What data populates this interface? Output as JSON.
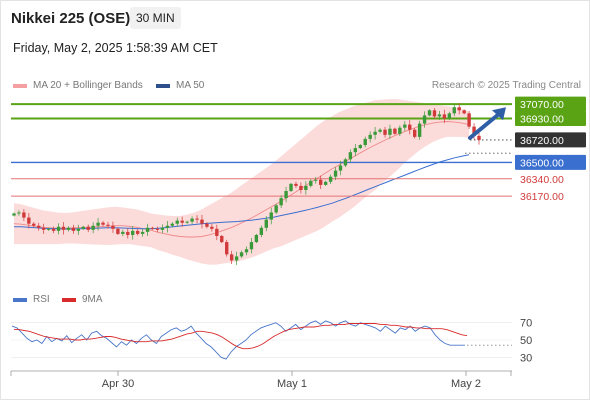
{
  "header": {
    "title": "Nikkei 225 (OSE)",
    "timeframe": "30 MIN",
    "datetime": "Friday, May 2, 2025 1:58:39 AM CET"
  },
  "legend": {
    "bollinger": {
      "label": "MA 20 + Bollinger Bands",
      "color": "#f4a0a0"
    },
    "ma50": {
      "label": "MA 50",
      "color": "#2d4f8c"
    }
  },
  "credit": "Research © 2025 Trading Central",
  "rsi_legend": {
    "rsi": {
      "label": "RSI",
      "color": "#4a76c9"
    },
    "ma9": {
      "label": "9MA",
      "color": "#d92b2b"
    }
  },
  "colors": {
    "resistance": "#5aa314",
    "pivot": "#3b6fcf",
    "support": "#e57373",
    "current": "#333333",
    "bull_candle": "#3a9a3a",
    "bear_candle": "#d13a3a",
    "arrow": "#2e5fa6"
  },
  "chart_data": [
    {
      "type": "candlestick",
      "timeframe": "30 MIN",
      "x_ticks": [
        "Apr 30",
        "May 1",
        "May 2"
      ],
      "ylim": [
        35300,
        37150
      ],
      "levels": [
        {
          "value": 37070,
          "label": "37070.00",
          "kind": "resistance"
        },
        {
          "value": 36930,
          "label": "36930.00",
          "kind": "resistance"
        },
        {
          "value": 36720,
          "label": "36720.00",
          "kind": "current"
        },
        {
          "value": 36500,
          "label": "36500.00",
          "kind": "pivot"
        },
        {
          "value": 36340,
          "label": "36340.00",
          "kind": "support"
        },
        {
          "value": 36170,
          "label": "36170.00",
          "kind": "support"
        }
      ],
      "closes": [
        36000,
        36010,
        35960,
        35900,
        35880,
        35860,
        35840,
        35850,
        35830,
        35870,
        35840,
        35860,
        35830,
        35850,
        35870,
        35840,
        35880,
        35910,
        35890,
        35880,
        35850,
        35800,
        35820,
        35790,
        35830,
        35800,
        35820,
        35860,
        35850,
        35840,
        35860,
        35880,
        35900,
        35930,
        35910,
        35920,
        35950,
        35940,
        35900,
        35870,
        35850,
        35780,
        35720,
        35600,
        35540,
        35580,
        35620,
        35650,
        35720,
        35790,
        35860,
        35940,
        36010,
        36080,
        36150,
        36220,
        36290,
        36270,
        36230,
        36270,
        36320,
        36330,
        36280,
        36310,
        36360,
        36420,
        36470,
        36530,
        36600,
        36640,
        36670,
        36730,
        36770,
        36800,
        36820,
        36770,
        36830,
        36780,
        36840,
        36870,
        36820,
        36750,
        36880,
        36960,
        37010,
        36950,
        36970,
        36930,
        36980,
        37040,
        37010,
        36980,
        36850,
        36760,
        36720
      ],
      "ma50": [
        35870,
        35870,
        35865,
        35860,
        35855,
        35852,
        35850,
        35848,
        35848,
        35850,
        35852,
        35855,
        35858,
        35860,
        35860,
        35858,
        35855,
        35852,
        35850,
        35850,
        35855,
        35862,
        35870,
        35878,
        35885,
        35892,
        35900,
        35905,
        35910,
        35915,
        35918,
        35922,
        35928,
        35935,
        35945,
        35955,
        35965,
        35980,
        35995,
        36010,
        36025,
        36042,
        36060,
        36080,
        36100,
        36125,
        36150,
        36178,
        36205,
        36235,
        36262,
        36290,
        36318,
        36345,
        36372,
        36400,
        36428,
        36455,
        36480,
        36505,
        36525,
        36545,
        36560,
        36575
      ],
      "bollinger_mid": [
        35900,
        35895,
        35885,
        35875,
        35865,
        35860,
        35855,
        35855,
        35858,
        35862,
        35865,
        35868,
        35872,
        35876,
        35880,
        35880,
        35875,
        35865,
        35850,
        35835,
        35815,
        35800,
        35785,
        35775,
        35770,
        35770,
        35775,
        35790,
        35810,
        35835,
        35860,
        35890,
        35925,
        35960,
        36000,
        36040,
        36080,
        36120,
        36165,
        36210,
        36255,
        36300,
        36345,
        36390,
        36435,
        36475,
        36515,
        36555,
        36595,
        36635,
        36670,
        36705,
        36740,
        36770,
        36800,
        36825,
        36850,
        36870,
        36885,
        36895,
        36900,
        36895,
        36885,
        36870
      ],
      "bollinger_upper": [
        36100,
        36090,
        36070,
        36050,
        36030,
        36020,
        36010,
        36005,
        36010,
        36020,
        36030,
        36040,
        36050,
        36060,
        36065,
        36060,
        36050,
        36040,
        36020,
        36000,
        35990,
        35980,
        35975,
        35975,
        35990,
        36010,
        36040,
        36080,
        36120,
        36160,
        36200,
        36250,
        36300,
        36350,
        36400,
        36450,
        36500,
        36560,
        36620,
        36680,
        36740,
        36800,
        36860,
        36910,
        36950,
        36990,
        37020,
        37050,
        37070,
        37090,
        37110,
        37115,
        37120,
        37120,
        37110,
        37100,
        37090,
        37080,
        37070,
        37060,
        37050,
        37040,
        37020,
        37000
      ],
      "bollinger_lower": [
        35700,
        35700,
        35700,
        35700,
        35700,
        35700,
        35700,
        35705,
        35706,
        35704,
        35700,
        35696,
        35694,
        35692,
        35695,
        35700,
        35700,
        35690,
        35680,
        35670,
        35640,
        35620,
        35595,
        35575,
        35550,
        35530,
        35510,
        35500,
        35500,
        35510,
        35520,
        35530,
        35550,
        35570,
        35600,
        35630,
        35660,
        35680,
        35710,
        35740,
        35770,
        35800,
        35830,
        35870,
        35920,
        35960,
        36010,
        36060,
        36120,
        36180,
        36230,
        36295,
        36360,
        36420,
        36490,
        36550,
        36610,
        36660,
        36700,
        36730,
        36750,
        36750,
        36750,
        36740
      ]
    },
    {
      "type": "line",
      "title": "RSI",
      "y_ticks": [
        70,
        50,
        30
      ],
      "ylim": [
        20,
        80
      ],
      "series": [
        {
          "name": "RSI",
          "values": [
            66,
            64,
            58,
            52,
            48,
            50,
            46,
            54,
            48,
            52,
            49,
            55,
            47,
            52,
            56,
            50,
            58,
            60,
            55,
            52,
            47,
            42,
            48,
            44,
            50,
            46,
            52,
            56,
            50,
            46,
            54,
            58,
            62,
            64,
            60,
            62,
            66,
            58,
            52,
            46,
            42,
            36,
            30,
            28,
            36,
            42,
            46,
            50,
            56,
            60,
            64,
            66,
            68,
            70,
            66,
            60,
            64,
            68,
            62,
            66,
            70,
            72,
            68,
            72,
            70,
            66,
            70,
            72,
            68,
            66,
            70,
            68,
            66,
            64,
            60,
            66,
            62,
            58,
            64,
            62,
            66,
            60,
            64,
            66,
            64,
            56,
            50,
            46,
            44,
            44,
            44,
            44
          ]
        },
        {
          "name": "9MA",
          "values": [
            62,
            62,
            61,
            60,
            58,
            56,
            54,
            53,
            52,
            51,
            51,
            51,
            50,
            50,
            51,
            51,
            52,
            53,
            54,
            54,
            53,
            51,
            50,
            49,
            48,
            48,
            48,
            49,
            49,
            49,
            50,
            51,
            53,
            55,
            57,
            58,
            60,
            60,
            59,
            58,
            56,
            53,
            49,
            45,
            42,
            40,
            40,
            41,
            43,
            46,
            50,
            54,
            57,
            60,
            62,
            63,
            64,
            65,
            65,
            65,
            66,
            67,
            67,
            68,
            68,
            68,
            69,
            69,
            69,
            69,
            69,
            69,
            68,
            68,
            67,
            67,
            66,
            65,
            65,
            64,
            64,
            63,
            63,
            63,
            63,
            62,
            60,
            58,
            56,
            55
          ]
        }
      ]
    }
  ]
}
